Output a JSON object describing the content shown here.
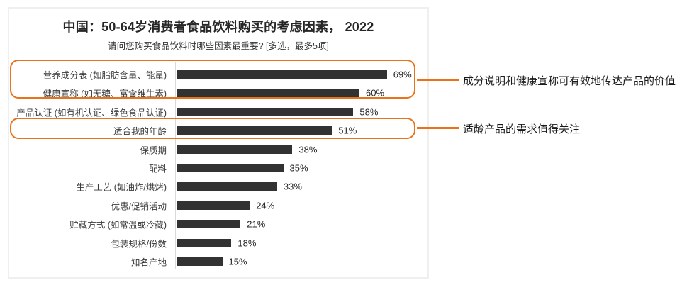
{
  "chart_data": {
    "type": "bar",
    "orientation": "horizontal",
    "title": "中国：50-64岁消费者食品饮料购买的考虑因素， 2022",
    "subtitle": "请问您购买食品饮料时哪些因素最重要? [多选，最多5项]",
    "categories": [
      "营养成分表 (如脂肪含量、能量)",
      "健康宣称 (如无糖、富含维生素)",
      "产品认证 (如有机认证、绿色食品认证)",
      "适合我的年龄",
      "保质期",
      "配料",
      "生产工艺 (如油炸/烘烤)",
      "优惠/促销活动",
      "贮藏方式 (如常温或冷藏)",
      "包装规格/份数",
      "知名产地"
    ],
    "values": [
      69,
      60,
      58,
      51,
      38,
      35,
      33,
      24,
      21,
      18,
      15
    ],
    "unit": "%",
    "xlim": [
      0,
      75
    ],
    "grid": false,
    "legend": false,
    "value_labels_shown": true
  },
  "highlights": [
    {
      "rows": [
        0,
        1
      ],
      "style": "rounded-box"
    },
    {
      "rows": [
        3
      ],
      "style": "rounded-box"
    }
  ],
  "annotations": [
    {
      "text": "成分说明和健康宣称可有效地传达产品的价值",
      "linked_highlight": 0
    },
    {
      "text": "适龄产品的需求值得关注",
      "linked_highlight": 1
    }
  ],
  "colors": {
    "accent": "#E8731A",
    "bar": "#323232",
    "axis_line": "#D9D9D9",
    "card_border": "#EFEFEF",
    "title_text": "#262626",
    "annotation_text": "#1A1A1A"
  }
}
